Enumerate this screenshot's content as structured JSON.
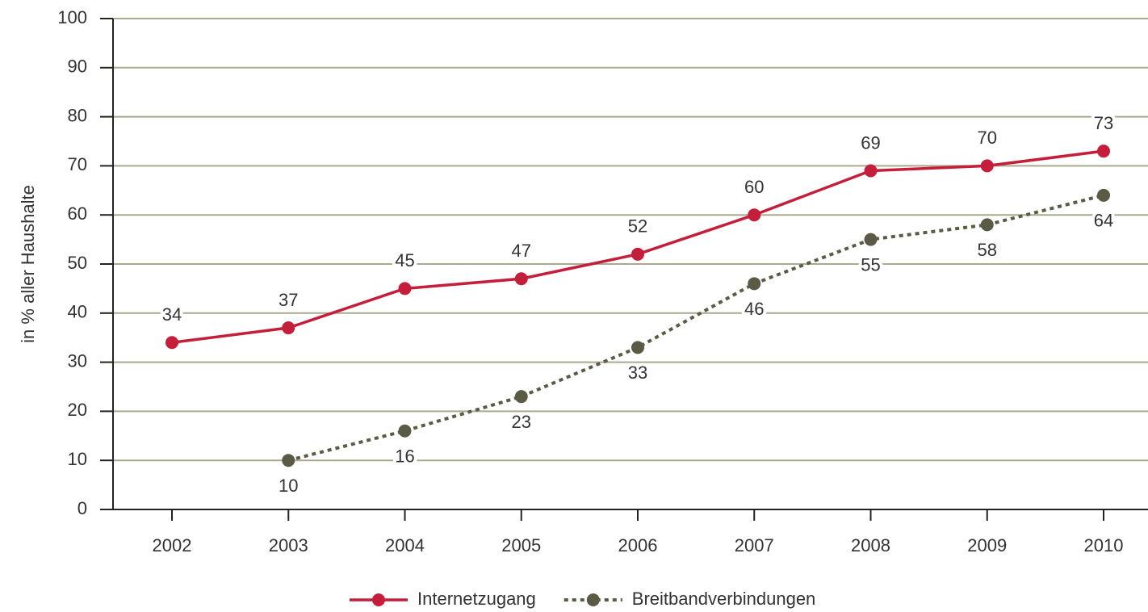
{
  "chart_data": {
    "type": "line",
    "y_label": "in % aller Haushalte",
    "categories": [
      "2002",
      "2003",
      "2004",
      "2005",
      "2006",
      "2007",
      "2008",
      "2009",
      "2010"
    ],
    "series": [
      {
        "name": "Internetzugang",
        "color": "#c41e3a",
        "linestyle": "solid",
        "label_position": "above",
        "values": [
          34,
          37,
          45,
          47,
          52,
          60,
          69,
          70,
          73
        ]
      },
      {
        "name": "Breitbandverbindungen",
        "color": "#5b5b45",
        "linestyle": "dotted",
        "label_position": "below",
        "values": [
          null,
          10,
          16,
          23,
          33,
          46,
          55,
          58,
          64
        ]
      }
    ],
    "ylim": [
      0,
      100
    ],
    "yticks": [
      0,
      10,
      20,
      30,
      40,
      50,
      60,
      70,
      80,
      90,
      100
    ],
    "grid": true,
    "legend": "bottom"
  }
}
